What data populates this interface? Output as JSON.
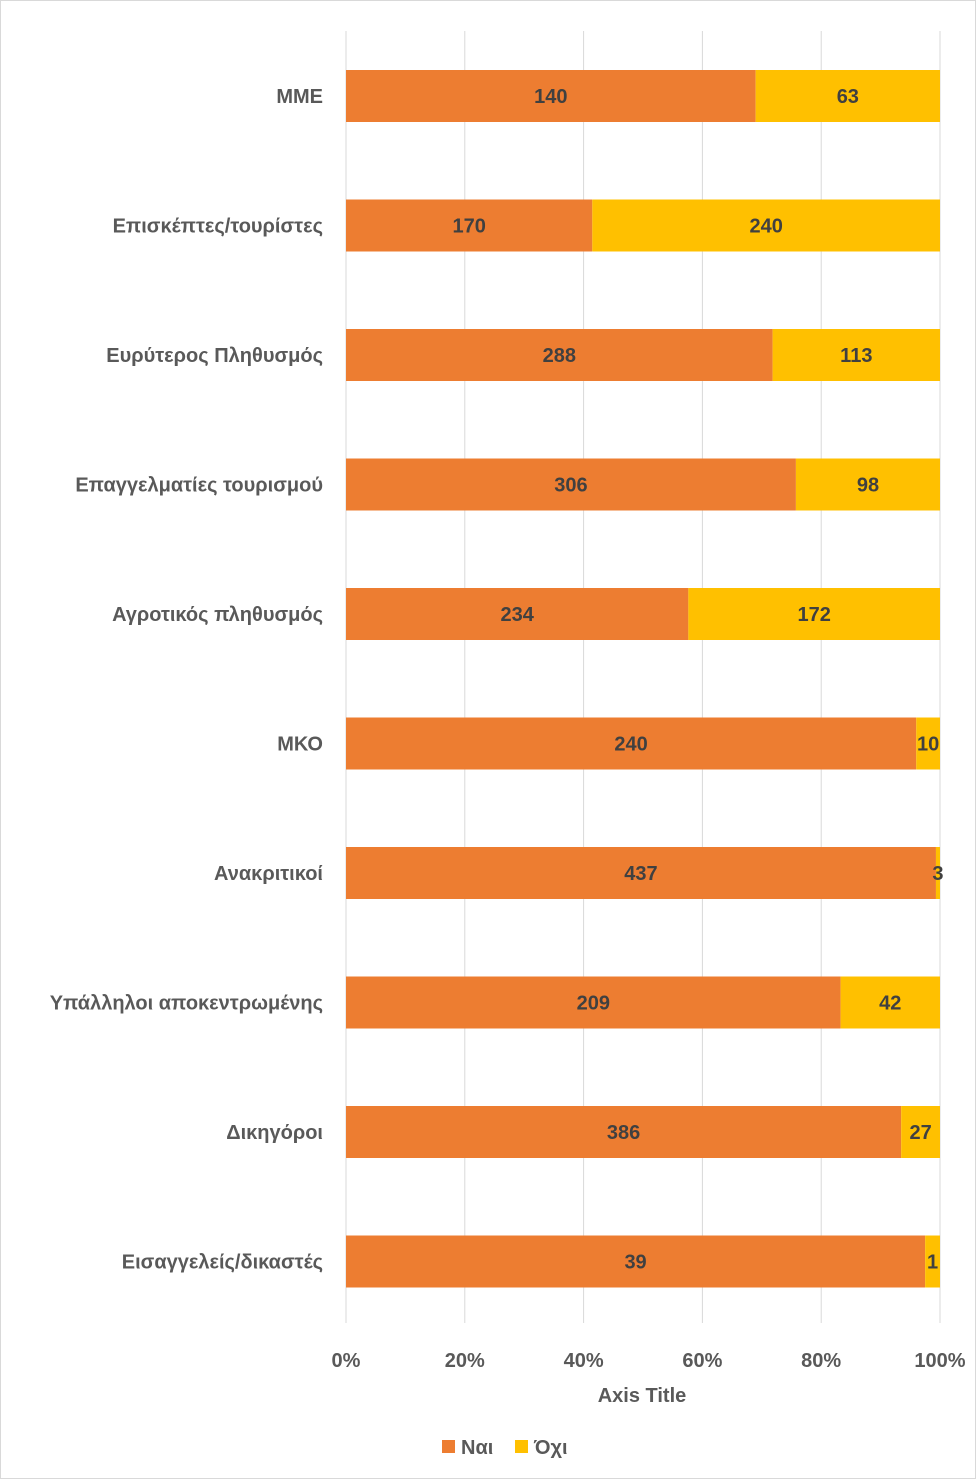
{
  "chart_data": {
    "type": "bar",
    "orientation": "horizontal",
    "stacking": "percent",
    "title": "",
    "categories": [
      "ΜΜΕ",
      "Επισκέπτες/τουρίστες",
      "Ευρύτερος Πληθυσμός",
      "Επαγγελματίες τουρισμού",
      "Αγροτικός πληθυσμός",
      "ΜΚΟ",
      "Ανακριτικοί",
      "Υπάλληλοι αποκεντρωμένης",
      "Δικηγόροι",
      "Εισαγγελείς/δικαστές"
    ],
    "series": [
      {
        "name": "Ναι",
        "color": "#ED7D31",
        "values": [
          140,
          170,
          288,
          306,
          234,
          240,
          437,
          209,
          386,
          39
        ]
      },
      {
        "name": "Όχι",
        "color": "#FFC000",
        "values": [
          63,
          240,
          113,
          98,
          172,
          10,
          3,
          42,
          27,
          1
        ]
      }
    ],
    "xlabel": "Axis Title",
    "ylabel": "",
    "xlim": [
      0,
      100
    ],
    "x_ticks": [
      "0%",
      "20%",
      "40%",
      "60%",
      "80%",
      "100%"
    ],
    "grid": true,
    "legend_position": "bottom"
  }
}
